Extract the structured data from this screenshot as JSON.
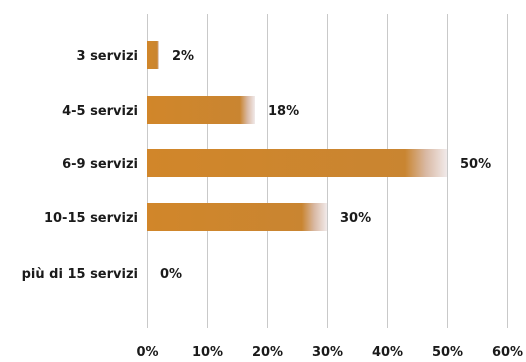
{
  "chart_data": {
    "type": "bar",
    "orientation": "horizontal",
    "categories": [
      "3 servizi",
      "4-5 servizi",
      "6-9 servizi",
      "10-15 servizi",
      "più di 15 servizi"
    ],
    "values": [
      2,
      18,
      50,
      30,
      0
    ],
    "value_labels": [
      "2%",
      "18%",
      "50%",
      "30%",
      "0%"
    ],
    "xlim": [
      0,
      60
    ],
    "xticks": [
      "0%",
      "10%",
      "20%",
      "30%",
      "40%",
      "50%",
      "60%"
    ],
    "xtick_values": [
      0,
      10,
      20,
      30,
      40,
      50,
      60
    ],
    "grid": true,
    "title": "",
    "xlabel": "",
    "ylabel": "",
    "bar_color": "#d1862a"
  }
}
